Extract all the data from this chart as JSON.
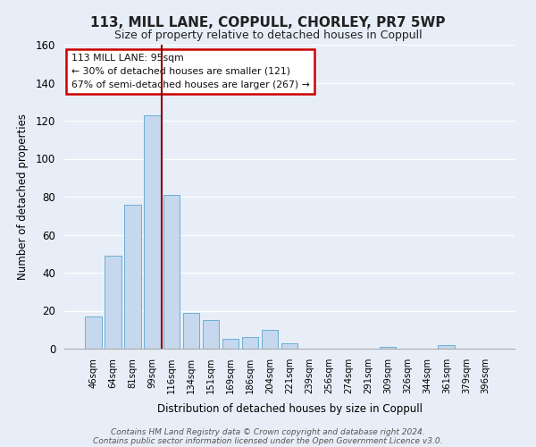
{
  "title": "113, MILL LANE, COPPULL, CHORLEY, PR7 5WP",
  "subtitle": "Size of property relative to detached houses in Coppull",
  "xlabel": "Distribution of detached houses by size in Coppull",
  "ylabel": "Number of detached properties",
  "bar_labels": [
    "46sqm",
    "64sqm",
    "81sqm",
    "99sqm",
    "116sqm",
    "134sqm",
    "151sqm",
    "169sqm",
    "186sqm",
    "204sqm",
    "221sqm",
    "239sqm",
    "256sqm",
    "274sqm",
    "291sqm",
    "309sqm",
    "326sqm",
    "344sqm",
    "361sqm",
    "379sqm",
    "396sqm"
  ],
  "bar_values": [
    17,
    49,
    76,
    123,
    81,
    19,
    15,
    5,
    6,
    10,
    3,
    0,
    0,
    0,
    0,
    1,
    0,
    0,
    2,
    0,
    0
  ],
  "bar_color": "#c5d8ed",
  "bar_edge_color": "#6baed6",
  "ylim": [
    0,
    160
  ],
  "yticks": [
    0,
    20,
    40,
    60,
    80,
    100,
    120,
    140,
    160
  ],
  "vline_x_index": 3.5,
  "vline_color": "#8b0000",
  "annotation_title": "113 MILL LANE: 95sqm",
  "annotation_line1": "← 30% of detached houses are smaller (121)",
  "annotation_line2": "67% of semi-detached houses are larger (267) →",
  "footer_line1": "Contains HM Land Registry data © Crown copyright and database right 2024.",
  "footer_line2": "Contains public sector information licensed under the Open Government Licence v3.0.",
  "background_color": "#e8eef7",
  "plot_bg_color": "#e8eef7",
  "grid_color": "#ffffff"
}
